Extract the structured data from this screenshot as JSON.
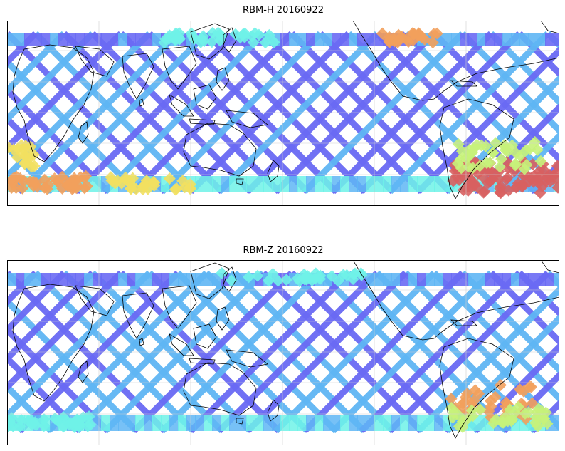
{
  "panels": [
    {
      "title": "RBM-H 20160922",
      "variable": "RBM-H",
      "date": "20160922",
      "projection": "equirectangular, Pacific-centred",
      "gridlines": true,
      "colormap": "jet"
    },
    {
      "title": "RBM-Z 20160922",
      "variable": "RBM-Z",
      "date": "20160922",
      "projection": "equirectangular, Pacific-centred",
      "gridlines": true,
      "colormap": "jet"
    }
  ],
  "colors": {
    "track_low": "#6a6af4",
    "track_mid": "#5fb6f4",
    "cyan": "#6ff2e8",
    "yellow_green": "#c6f27a",
    "yellow": "#f2e060",
    "orange": "#f2a05c",
    "red": "#d86060",
    "coast": "#000000",
    "grid": "#cfcfcf"
  }
}
